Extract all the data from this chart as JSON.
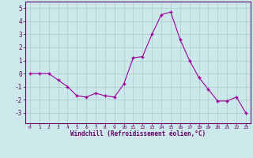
{
  "x": [
    0,
    1,
    2,
    3,
    4,
    5,
    6,
    7,
    8,
    9,
    10,
    11,
    12,
    13,
    14,
    15,
    16,
    17,
    18,
    19,
    20,
    21,
    22,
    23
  ],
  "y": [
    0,
    0,
    0,
    -0.5,
    -1.0,
    -1.7,
    -1.8,
    -1.5,
    -1.7,
    -1.8,
    -0.8,
    1.2,
    1.3,
    3.0,
    4.5,
    4.7,
    2.6,
    1.0,
    -0.3,
    -1.2,
    -2.1,
    -2.1,
    -1.8,
    -3.0
  ],
  "line_color": "#990099",
  "marker_color": "#990099",
  "bg_color": "#cce8eb",
  "grid_color": "#aacccc",
  "axis_color": "#660066",
  "xlabel": "Windchill (Refroidissement éolien,°C)",
  "xlabel_color": "#660066",
  "tick_color": "#660066",
  "ylim": [
    -3.8,
    5.5
  ],
  "yticks": [
    -3,
    -2,
    -1,
    0,
    1,
    2,
    3,
    4,
    5
  ],
  "xlim": [
    -0.5,
    23.5
  ]
}
